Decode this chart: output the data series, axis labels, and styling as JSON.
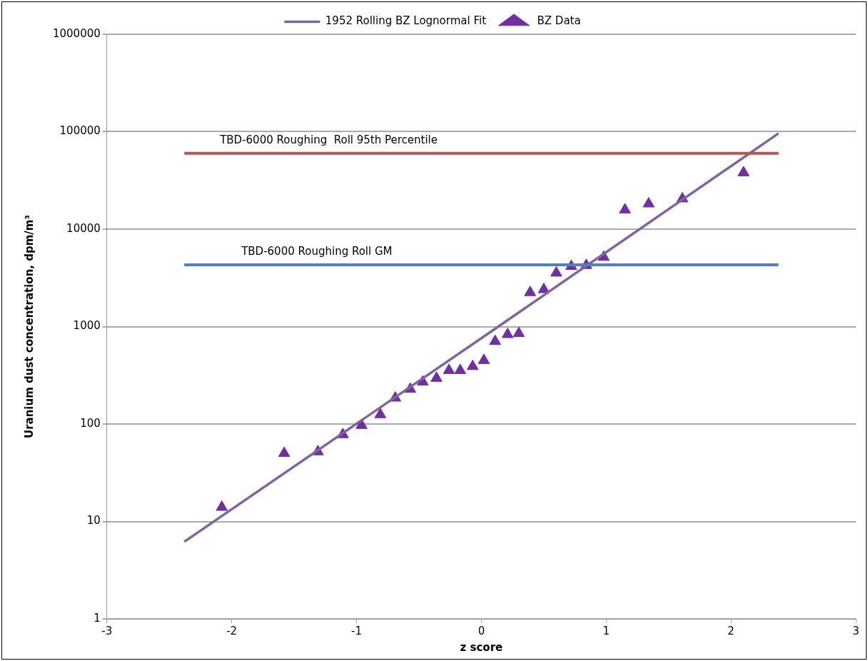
{
  "chart_data": {
    "type": "scatter",
    "xlabel": "z score",
    "ylabel": "Uranium dust concentration, dpm/m³",
    "xlim": [
      -3,
      3
    ],
    "xticks": [
      -3,
      -2,
      -1,
      0,
      1,
      2,
      3
    ],
    "ylim": [
      1,
      1000000
    ],
    "yticks": [
      1,
      10,
      100,
      1000,
      10000,
      100000,
      1000000
    ],
    "log": "y",
    "grid": "y",
    "legend": "top",
    "series": [
      {
        "name": "1952 Rolling BZ Lognormal Fit",
        "type": "line",
        "color": "#8064a2",
        "marker": "none",
        "line_style": "solid",
        "x": [
          -2.38,
          0,
          2.38
        ],
        "values": [
          6.2,
          760,
          96000
        ]
      },
      {
        "name": "BZ Data",
        "type": "scatter",
        "color": "#7030a0",
        "marker": "triangle",
        "x": [
          -2.08,
          -1.58,
          -1.31,
          -1.11,
          -0.96,
          -0.81,
          -0.69,
          -0.57,
          -0.47,
          -0.36,
          -0.26,
          -0.17,
          -0.07,
          0.02,
          0.11,
          0.21,
          0.3,
          0.39,
          0.5,
          0.6,
          0.72,
          0.84,
          0.98,
          1.15,
          1.34,
          1.61,
          2.1
        ],
        "values": [
          14,
          50,
          52,
          78,
          97,
          125,
          185,
          228,
          270,
          295,
          355,
          355,
          390,
          450,
          705,
          830,
          850,
          2240,
          2400,
          3550,
          4150,
          4250,
          5150,
          15800,
          18200,
          20500,
          38000
        ]
      }
    ],
    "ref_lines": [
      {
        "axis": "y",
        "value": 60000,
        "label": "TBD-6000 Roughing  Roll 95th Percentile",
        "color": "#c0504d"
      },
      {
        "axis": "y",
        "value": 4300,
        "label": "TBD-6000 Roughing Roll GM",
        "color": "#4f81bd"
      }
    ]
  }
}
